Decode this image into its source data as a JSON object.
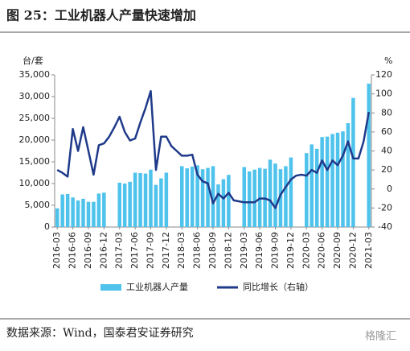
{
  "chart_data": {
    "type": "bar-line",
    "title": "图 25：工业机器人产量快速增加",
    "y_label": "台/套",
    "y2_label": "%",
    "source": "数据来源：Wind，国泰君安证券研究",
    "watermark": "格隆汇",
    "categories": [
      "2016-03",
      null,
      null,
      "2016-06",
      null,
      null,
      "2016-09",
      null,
      null,
      "2016-12",
      null,
      null,
      "2017-03",
      null,
      null,
      "2017-06",
      null,
      null,
      "2017-09",
      null,
      null,
      "2017-12",
      null,
      null,
      "2018-03",
      null,
      null,
      "2018-06",
      null,
      null,
      "2018-09",
      null,
      null,
      "2018-12",
      null,
      null,
      "2019-03",
      null,
      null,
      "2019-06",
      null,
      null,
      "2019-09",
      null,
      null,
      "2019-12",
      null,
      null,
      "2020-03",
      null,
      null,
      "2020-06",
      null,
      null,
      "2020-09",
      null,
      null,
      "2020-12",
      null,
      null,
      "2021-03"
    ],
    "series": [
      {
        "name": "工业机器人产量",
        "type": "bar",
        "axis": "y",
        "color": "#4fc3ec",
        "values": [
          4300,
          7500,
          7600,
          6800,
          6100,
          6500,
          5800,
          5800,
          7700,
          7900,
          null,
          null,
          10200,
          10000,
          10400,
          12500,
          12400,
          12300,
          13200,
          9700,
          11200,
          12500,
          null,
          null,
          14000,
          13500,
          13900,
          14200,
          13300,
          13600,
          14000,
          9800,
          11000,
          12000,
          null,
          null,
          13800,
          12800,
          13200,
          13600,
          13400,
          15500,
          14600,
          13300,
          14000,
          16000,
          null,
          null,
          17000,
          19000,
          18000,
          20700,
          20800,
          21400,
          21700,
          22000,
          23900,
          29700,
          null,
          null,
          33000
        ]
      },
      {
        "name": "同比增长（右轴）",
        "type": "line",
        "axis": "y2",
        "color": "#1f3a8a",
        "values": [
          20,
          17,
          13,
          63,
          40,
          65,
          40,
          15,
          46,
          48,
          55,
          65,
          76,
          60,
          51,
          53,
          70,
          85,
          103,
          20,
          55,
          55,
          45,
          40,
          35,
          35,
          36,
          15,
          8,
          6,
          -15,
          -5,
          -10,
          -4,
          -12,
          -13,
          -14,
          -14,
          -14,
          -10,
          -10,
          -12,
          -20,
          -6,
          2,
          10,
          14,
          15,
          14,
          20,
          17,
          30,
          20,
          30,
          25,
          35,
          50,
          32,
          32,
          50,
          81
        ]
      }
    ],
    "ylim": [
      0,
      35000
    ],
    "yticks": [
      0,
      {
        "value": 5000,
        "label": "5,000"
      },
      {
        "value": 10000,
        "label": "10,000"
      },
      {
        "value": 15000,
        "label": "15,000"
      },
      {
        "value": 20000,
        "label": "20,000"
      },
      {
        "value": 25000,
        "label": "25,000"
      },
      {
        "value": 30000,
        "label": "30,000"
      },
      {
        "value": 35000,
        "label": "35,000"
      }
    ],
    "y2lim": [
      -40,
      120
    ],
    "y2ticks": [
      -40,
      -20,
      0,
      20,
      40,
      60,
      80,
      100,
      120
    ]
  }
}
